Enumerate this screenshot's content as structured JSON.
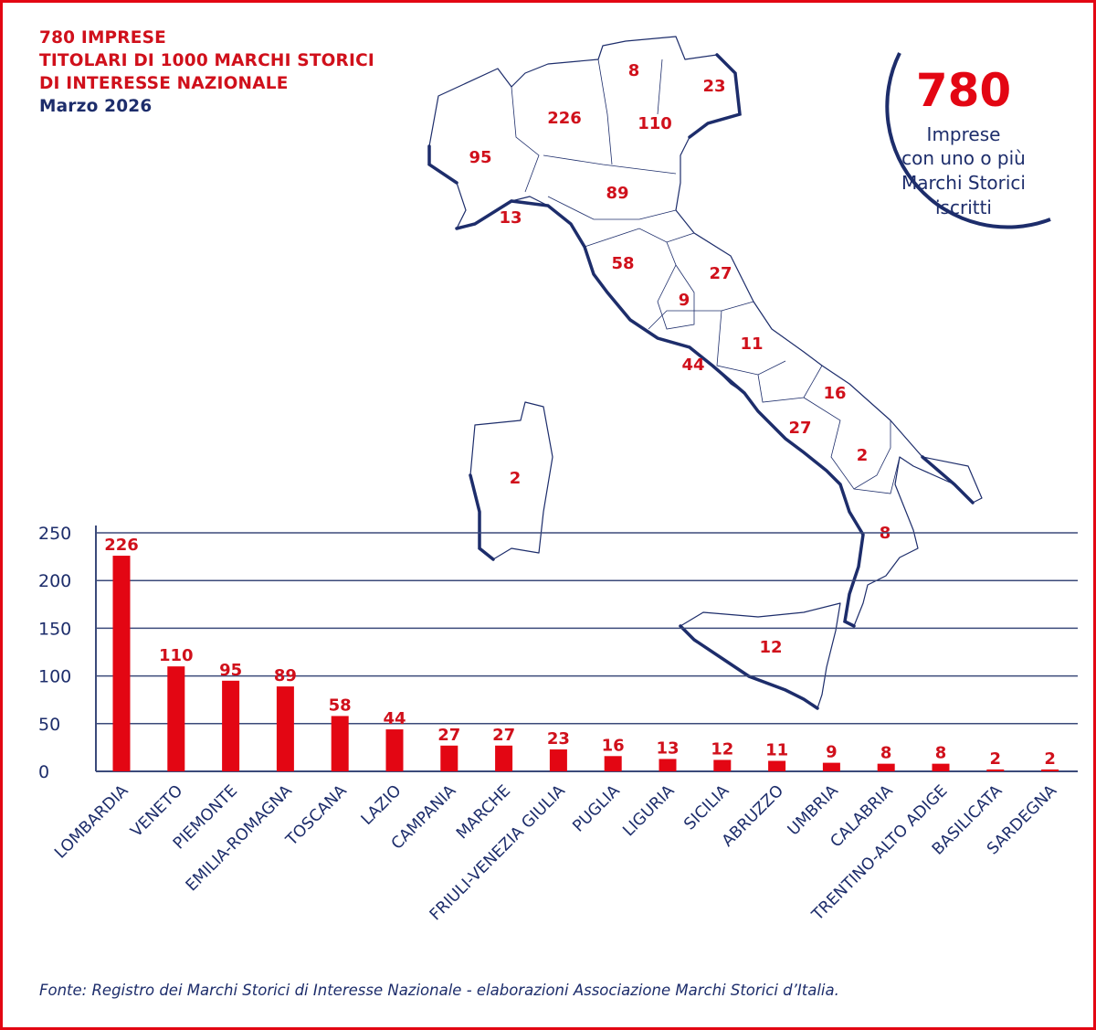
{
  "header": {
    "title_lines": [
      "780 IMPRESE",
      "TITOLARI DI 1000 MARCHI STORICI",
      "DI INTERESSE NAZIONALE"
    ],
    "date": "Marzo 2026"
  },
  "badge": {
    "number": "780",
    "lines": [
      "Imprese",
      "con uno o più",
      "Marchi Storici",
      "iscritti"
    ]
  },
  "colors": {
    "bar": "#e30613",
    "text_red": "#d0101b",
    "navy": "#1d2d6b",
    "grid": "#3b4a7a"
  },
  "map": {
    "regions": [
      {
        "name": "Lombardia",
        "value": "226"
      },
      {
        "name": "Piemonte",
        "value": "95"
      },
      {
        "name": "Trentino-Alto Adige",
        "value": "8"
      },
      {
        "name": "Friuli-Venezia Giulia",
        "value": "23"
      },
      {
        "name": "Veneto",
        "value": "110"
      },
      {
        "name": "Emilia-Romagna",
        "value": "89"
      },
      {
        "name": "Liguria",
        "value": "13"
      },
      {
        "name": "Toscana",
        "value": "58"
      },
      {
        "name": "Marche",
        "value": "27"
      },
      {
        "name": "Umbria",
        "value": "9"
      },
      {
        "name": "Abruzzo",
        "value": "11"
      },
      {
        "name": "Lazio",
        "value": "44"
      },
      {
        "name": "Puglia",
        "value": "16"
      },
      {
        "name": "Campania",
        "value": "27"
      },
      {
        "name": "Basilicata",
        "value": "2"
      },
      {
        "name": "Calabria",
        "value": "8"
      },
      {
        "name": "Sicilia",
        "value": "12"
      },
      {
        "name": "Sardegna",
        "value": "2"
      }
    ]
  },
  "chart_data": {
    "type": "bar",
    "categories": [
      "LOMBARDIA",
      "VENETO",
      "PIEMONTE",
      "EMILIA-ROMAGNA",
      "TOSCANA",
      "LAZIO",
      "CAMPANIA",
      "MARCHE",
      "FRIULI-VENEZIA GIULIA",
      "PUGLIA",
      "LIGURIA",
      "SICILIA",
      "ABRUZZO",
      "UMBRIA",
      "CALABRIA",
      "TRENTINO-ALTO ADIGE",
      "BASILICATA",
      "SARDEGNA"
    ],
    "values": [
      226,
      110,
      95,
      89,
      58,
      44,
      27,
      27,
      23,
      16,
      13,
      12,
      11,
      9,
      8,
      8,
      2,
      2
    ],
    "yticks": [
      0,
      50,
      100,
      150,
      200,
      250
    ],
    "ylim": [
      0,
      250
    ],
    "grid": true,
    "data_labels": true
  },
  "footer": {
    "source": "Fonte: Registro dei Marchi Storici di Interesse Nazionale - elaborazioni Associazione Marchi Storici d’Italia."
  }
}
